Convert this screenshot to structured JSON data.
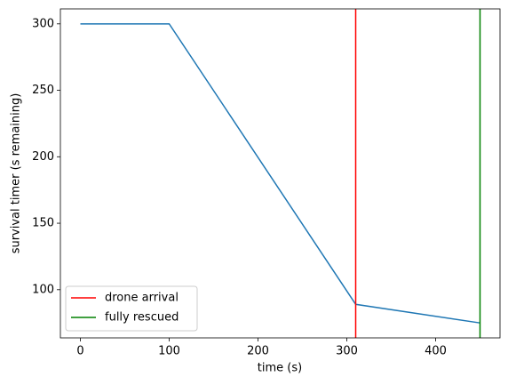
{
  "chart_data": {
    "type": "line",
    "x": [
      0,
      100,
      310,
      450
    ],
    "series": [
      {
        "color": "#1f77b4",
        "values": [
          300,
          300,
          89,
          75
        ]
      }
    ],
    "vlines": [
      {
        "x": 310,
        "color": "#ff0000",
        "label": "drone arrival"
      },
      {
        "x": 450,
        "color": "#008000",
        "label": "fully rescued"
      }
    ],
    "xlabel": "time (s)",
    "ylabel": "survival timer (s remaining)",
    "xlim": [
      -22.5,
      472.5
    ],
    "ylim": [
      63.75,
      311.25
    ],
    "xticks": [
      0,
      100,
      200,
      300,
      400
    ],
    "yticks": [
      100,
      150,
      200,
      250,
      300
    ],
    "legend": "lower left"
  }
}
